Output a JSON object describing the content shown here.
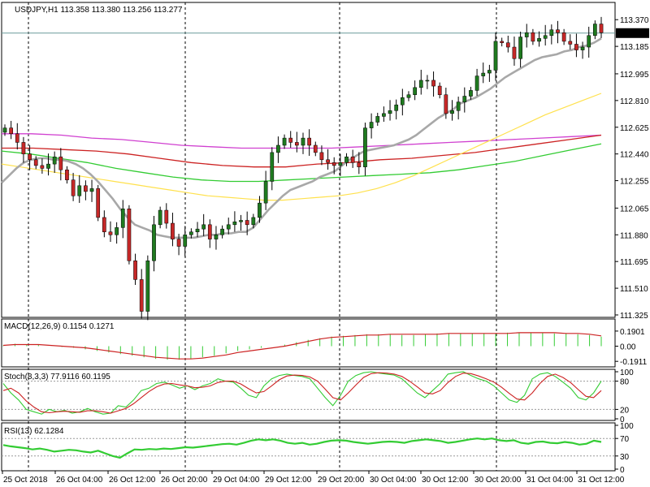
{
  "colors": {
    "background": "#ffffff",
    "frame": "#000000",
    "candle_bull": "#1f7a1f",
    "candle_bear": "#c62828",
    "wick": "#000000",
    "ma_fast": "#a8a8a8",
    "ma_yellow": "#ffe14d",
    "ma_green": "#33cc33",
    "ma_red": "#cc2222",
    "ma_magenta": "#d040d0",
    "bid_line": "#6a9a9a",
    "macd_hist": "#33cc33",
    "macd_signal": "#cc2222",
    "stoch_main": "#33cc33",
    "stoch_signal": "#cc2222",
    "rsi": "#33cc33",
    "label_bg": "#000000",
    "label_text": "#ffffff"
  },
  "chart_data": [
    {
      "type": "candlestick",
      "title": "USDJPY,H1 113.358 113.380 113.256 113.277",
      "ylim": [
        111.325,
        113.45
      ],
      "y_ticks": [
        "113.370",
        "113.185",
        "112.995",
        "112.810",
        "112.625",
        "112.440",
        "112.255",
        "112.065",
        "111.880",
        "111.695",
        "111.510",
        "111.325"
      ],
      "current_price": "113.277",
      "x_ticks": [
        "25 Oct 2018",
        "26 Oct 04:00",
        "26 Oct 12:00",
        "26 Oct 20:00",
        "29 Oct 04:00",
        "29 Oct 12:00",
        "29 Oct 20:00",
        "30 Oct 04:00",
        "30 Oct 12:00",
        "30 Oct 20:00",
        "31 Oct 04:00",
        "31 Oct 12:00"
      ],
      "close": [
        112.62,
        112.58,
        112.52,
        112.44,
        112.4,
        112.36,
        112.34,
        112.37,
        112.42,
        112.33,
        112.26,
        112.15,
        112.22,
        112.18,
        112.2,
        112.0,
        111.9,
        111.88,
        111.93,
        112.06,
        111.7,
        111.57,
        111.35,
        111.7,
        111.95,
        112.05,
        111.96,
        111.85,
        111.8,
        111.88,
        111.9,
        111.92,
        111.95,
        111.85,
        111.88,
        111.92,
        111.95,
        111.97,
        111.98,
        111.95,
        112.0,
        112.1,
        112.25,
        112.45,
        112.5,
        112.55,
        112.52,
        112.5,
        112.55,
        112.5,
        112.45,
        112.4,
        112.38,
        112.36,
        112.38,
        112.42,
        112.38,
        112.35,
        112.62,
        112.66,
        112.7,
        112.72,
        112.74,
        112.78,
        112.83,
        112.85,
        112.9,
        112.95,
        112.95,
        112.91,
        112.85,
        112.72,
        112.74,
        112.8,
        112.84,
        112.88,
        112.98,
        113.0,
        113.02,
        113.22,
        113.21,
        113.18,
        113.1,
        113.25,
        113.28,
        113.22,
        113.24,
        113.26,
        113.3,
        113.28,
        113.22,
        113.2,
        113.16,
        113.18,
        113.26,
        113.34,
        113.28
      ],
      "ma_fast": [
        112.24,
        112.29,
        112.34,
        112.38,
        112.4,
        112.41,
        112.41,
        112.4,
        112.4,
        112.39,
        112.37,
        112.34,
        112.3,
        112.25,
        112.19,
        112.13,
        112.06,
        112.0,
        111.95,
        111.93,
        111.91,
        111.88,
        111.87,
        111.86,
        111.86,
        111.86,
        111.86,
        111.87,
        111.88,
        111.88,
        111.89,
        111.89,
        111.9,
        111.9,
        111.93,
        111.99,
        112.05,
        112.1,
        112.15,
        112.19,
        112.21,
        112.23,
        112.25,
        112.28,
        112.3,
        112.32,
        112.36,
        112.4,
        112.43,
        112.46,
        112.47,
        112.48,
        112.49,
        112.5,
        112.52,
        112.54,
        112.57,
        112.61,
        112.65,
        112.69,
        112.72,
        112.75,
        112.79,
        112.81,
        112.83,
        112.86,
        112.89,
        112.93,
        112.97,
        113.0,
        113.03,
        113.06,
        113.09,
        113.11,
        113.12,
        113.13,
        113.15,
        113.16,
        113.18,
        113.19,
        113.21,
        113.24
      ],
      "ma_yellow": [
        112.37,
        112.35,
        112.33,
        112.31,
        112.29,
        112.27,
        112.25,
        112.23,
        112.21,
        112.19,
        112.17,
        112.15,
        112.14,
        112.13,
        112.12,
        112.12,
        112.13,
        112.14,
        112.15,
        112.17,
        112.2,
        112.24,
        112.29,
        112.35,
        112.41,
        112.47,
        112.53,
        112.59,
        112.65,
        112.71,
        112.76,
        112.81,
        112.86
      ],
      "ma_green": [
        112.46,
        112.44,
        112.41,
        112.38,
        112.34,
        112.31,
        112.28,
        112.26,
        112.25,
        112.25,
        112.26,
        112.27,
        112.28,
        112.29,
        112.3,
        112.31,
        112.33,
        112.36,
        112.39,
        112.43,
        112.47,
        112.51
      ],
      "ma_red": [
        112.48,
        112.48,
        112.47,
        112.46,
        112.44,
        112.41,
        112.38,
        112.36,
        112.35,
        112.35,
        112.37,
        112.38,
        112.4,
        112.41,
        112.43,
        112.45,
        112.48,
        112.51,
        112.54,
        112.57
      ],
      "ma_magenta": [
        112.58,
        112.58,
        112.57,
        112.55,
        112.54,
        112.52,
        112.5,
        112.49,
        112.48,
        112.48,
        112.48,
        112.48,
        112.49,
        112.5,
        112.51,
        112.52,
        112.53,
        112.54,
        112.55,
        112.56,
        112.57
      ]
    },
    {
      "type": "bar",
      "title": "MACD(12,26,9) 0.1154 0.1271",
      "ylim": [
        -0.23,
        0.23
      ],
      "y_ticks": [
        "0.1901",
        "0.00",
        "-0.1911"
      ],
      "histogram": [
        0.01,
        0.03,
        0.02,
        0.02,
        0.0,
        -0.01,
        -0.02,
        -0.04,
        -0.06,
        -0.08,
        -0.1,
        -0.12,
        -0.14,
        -0.16,
        -0.17,
        -0.17,
        -0.16,
        -0.14,
        -0.12,
        -0.09,
        -0.06,
        -0.04,
        -0.02,
        0.0,
        0.02,
        0.05,
        0.08,
        0.1,
        0.12,
        0.13,
        0.14,
        0.15,
        0.15,
        0.15,
        0.14,
        0.14,
        0.15,
        0.16,
        0.16,
        0.16,
        0.16,
        0.16,
        0.16,
        0.17,
        0.17,
        0.17,
        0.17,
        0.16,
        0.16,
        0.15,
        0.14,
        0.12
      ],
      "signal": [
        0.01,
        0.02,
        0.02,
        0.02,
        0.01,
        0.0,
        -0.01,
        -0.02,
        -0.04,
        -0.06,
        -0.08,
        -0.1,
        -0.12,
        -0.14,
        -0.15,
        -0.16,
        -0.16,
        -0.15,
        -0.13,
        -0.11,
        -0.08,
        -0.06,
        -0.04,
        -0.02,
        0.0,
        0.03,
        0.06,
        0.09,
        0.11,
        0.12,
        0.13,
        0.14,
        0.14,
        0.15,
        0.15,
        0.15,
        0.15,
        0.15,
        0.16,
        0.16,
        0.16,
        0.16,
        0.16,
        0.16,
        0.17,
        0.17,
        0.17,
        0.17,
        0.16,
        0.16,
        0.15,
        0.13
      ]
    },
    {
      "type": "line",
      "title": "Stoch(8,3,3) 77.9116 60.1195",
      "ylim": [
        0,
        100
      ],
      "y_ticks": [
        "100",
        "80",
        "20",
        "0"
      ],
      "series": [
        {
          "values": [
            75,
            55,
            40,
            20,
            15,
            10,
            20,
            15,
            18,
            12,
            15,
            22,
            15,
            10,
            12,
            28,
            25,
            40,
            60,
            65,
            75,
            78,
            72,
            65,
            70,
            62,
            70,
            75,
            85,
            80,
            78,
            65,
            50,
            45,
            70,
            85,
            92,
            95,
            92,
            90,
            85,
            65,
            45,
            28,
            50,
            80,
            92,
            98,
            100,
            97,
            95,
            93,
            85,
            70,
            55,
            45,
            60,
            75,
            95,
            98,
            100,
            92,
            85,
            80,
            70,
            55,
            40,
            35,
            50,
            85,
            95,
            98,
            90,
            78,
            65,
            45,
            40,
            55,
            80
          ]
        },
        {
          "values": [
            60,
            65,
            55,
            38,
            25,
            15,
            13,
            15,
            16,
            15,
            14,
            17,
            17,
            15,
            12,
            17,
            22,
            32,
            45,
            58,
            68,
            74,
            75,
            72,
            70,
            66,
            67,
            70,
            77,
            80,
            80,
            74,
            64,
            55,
            58,
            70,
            83,
            91,
            93,
            92,
            89,
            80,
            63,
            45,
            40,
            55,
            72,
            88,
            96,
            98,
            97,
            95,
            90,
            80,
            68,
            55,
            53,
            60,
            77,
            90,
            97,
            96,
            91,
            85,
            78,
            67,
            54,
            42,
            40,
            55,
            75,
            90,
            95,
            88,
            77,
            62,
            48,
            45,
            60
          ]
        }
      ]
    },
    {
      "type": "line",
      "title": "RSI(13) 62.1284",
      "ylim": [
        0,
        100
      ],
      "y_ticks": [
        "100",
        "70",
        "30",
        "0"
      ],
      "values": [
        55,
        52,
        50,
        48,
        45,
        47,
        44,
        40,
        42,
        44,
        43,
        40,
        38,
        42,
        36,
        30,
        26,
        36,
        45,
        44,
        46,
        45,
        47,
        46,
        48,
        50,
        49,
        51,
        53,
        55,
        57,
        58,
        56,
        60,
        65,
        68,
        66,
        68,
        65,
        60,
        58,
        60,
        56,
        58,
        62,
        65,
        66,
        65,
        62,
        60,
        58,
        60,
        62,
        63,
        62,
        60,
        64,
        66,
        68,
        66,
        64,
        60,
        62,
        65,
        68,
        70,
        68,
        70,
        66,
        64,
        66,
        60,
        58,
        62,
        63,
        60,
        59,
        62,
        60,
        56,
        58,
        65,
        62
      ]
    }
  ]
}
